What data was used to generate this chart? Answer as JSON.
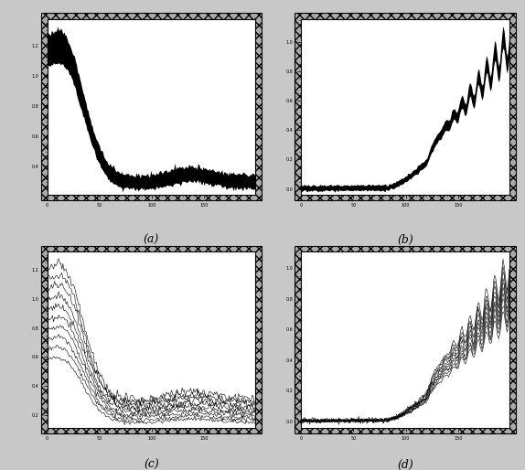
{
  "fig_width": 5.74,
  "fig_height": 5.14,
  "dpi": 100,
  "background_color": "#c8c8c8",
  "subplot_labels": [
    "(a)",
    "(b)",
    "(c)",
    "(d)"
  ],
  "n_bands": 200,
  "label_fontsize": 9,
  "tick_fontsize": 3.5,
  "border_color": "#000000",
  "plot_bg": "#ffffff",
  "frame_color": "#888888"
}
